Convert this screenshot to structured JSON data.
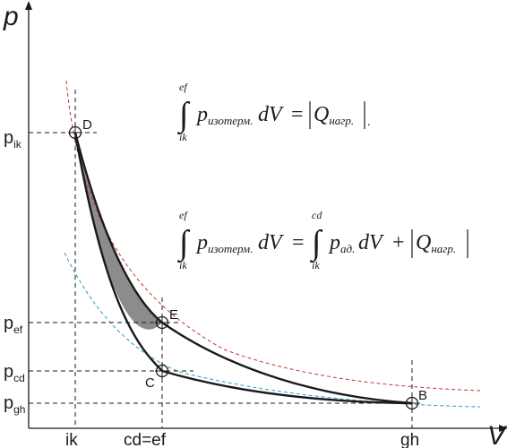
{
  "axes": {
    "x_letter": "V",
    "y_letter": "p"
  },
  "x_ticks": {
    "ik": "ik",
    "cdef": "cd=ef",
    "gh": "gh"
  },
  "y_ticks": {
    "ik": {
      "base": "p",
      "sub": "ik"
    },
    "ef": {
      "base": "p",
      "sub": "ef"
    },
    "cd": {
      "base": "p",
      "sub": "cd"
    },
    "gh": {
      "base": "p",
      "sub": "gh"
    }
  },
  "points": {
    "B": "B",
    "C": "C",
    "D": "D",
    "E": "E"
  },
  "formula1": {
    "upper": "ef",
    "lower": "ik",
    "integral": "∫",
    "p": "p",
    "p_sub": "изотерм.",
    "dV": "dV",
    "eq": "=",
    "Q": "Q",
    "Q_sub": "нагр.",
    "dot": "."
  },
  "formula2": {
    "upper1": "ef",
    "lower1": "ik",
    "integral1": "∫",
    "p1": "p",
    "p1_sub": "изотерм.",
    "dV1": "dV",
    "eq": "=",
    "upper2": "cd",
    "lower2": "ik",
    "integral2": "∫",
    "p2": "p",
    "p2_sub": "ад.",
    "dV2": "dV",
    "plus": "+",
    "Q": "Q",
    "Q_sub": "нагр."
  },
  "colors": {
    "curve": "#1a1a1a",
    "fill_region": "#8c8c8c",
    "isotherm_hot": "#c0392b",
    "isotherm_cold": "#2e9bc4",
    "guide": "#1a1a1a"
  }
}
